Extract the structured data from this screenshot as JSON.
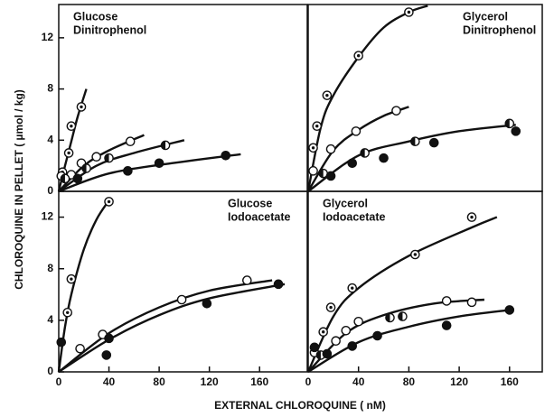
{
  "xlabel": "EXTERNAL CHLOROQUINE ( nM)",
  "ylabel": "CHLOROQUINE IN PELLET ( µmol / kg)",
  "chart_data": [
    {
      "type": "scatter",
      "title": [
        "Glucose",
        "Dinitrophenol"
      ],
      "xlim": [
        0,
        198
      ],
      "ylim": [
        0,
        14.6
      ],
      "yticks": [
        0,
        4,
        8,
        12
      ],
      "series": [
        {
          "marker": "dotted",
          "x": [
            3,
            8,
            10,
            18
          ],
          "values": [
            1.5,
            3.0,
            5.1,
            6.6
          ],
          "fit": {
            "x": [
              0,
              5,
              10,
              15,
              22
            ],
            "y": [
              0,
              2,
              3.9,
              5.8,
              8
            ]
          }
        },
        {
          "marker": "open",
          "x": [
            2,
            10,
            18,
            30,
            57
          ],
          "values": [
            1.2,
            1.3,
            2.2,
            2.7,
            3.9
          ],
          "fit": {
            "x": [
              0,
              20,
              40,
              68
            ],
            "y": [
              0,
              2.0,
              3.2,
              4.4
            ]
          }
        },
        {
          "marker": "half",
          "x": [
            5,
            22,
            40,
            85
          ],
          "values": [
            1.0,
            1.8,
            2.6,
            3.6
          ],
          "fit": {
            "x": [
              0,
              30,
              60,
              100
            ],
            "y": [
              0,
              2.0,
              3.0,
              4.0
            ]
          }
        },
        {
          "marker": "filled",
          "x": [
            15,
            55,
            80,
            133
          ],
          "values": [
            1.0,
            1.6,
            2.2,
            2.8
          ],
          "fit": {
            "x": [
              0,
              40,
              90,
              145
            ],
            "y": [
              0,
              1.4,
              2.2,
              2.9
            ]
          }
        }
      ]
    },
    {
      "type": "scatter",
      "title": [
        "Glycerol",
        "Dinitrophenol"
      ],
      "xlim": [
        0,
        186
      ],
      "ylim": [
        0,
        14.6
      ],
      "series": [
        {
          "marker": "dotted",
          "x": [
            4,
            7,
            15,
            40,
            80
          ],
          "values": [
            3.4,
            5.1,
            7.5,
            10.6,
            14
          ],
          "fit": {
            "x": [
              0,
              10,
              20,
              40,
              60,
              80,
              95
            ],
            "y": [
              0,
              5,
              7.5,
              10.5,
              12.8,
              14,
              14.5
            ]
          }
        },
        {
          "marker": "open",
          "x": [
            4,
            18,
            38,
            70
          ],
          "values": [
            1.6,
            3.3,
            4.7,
            6.3
          ],
          "fit": {
            "x": [
              0,
              20,
              40,
              60,
              80
            ],
            "y": [
              0,
              3.2,
              4.8,
              5.9,
              6.6
            ]
          }
        },
        {
          "marker": "half",
          "x": [
            12,
            45,
            85,
            160
          ],
          "values": [
            1.4,
            3.0,
            3.9,
            5.3
          ],
          "fit": {
            "x": [
              0,
              40,
              80,
              120,
              165
            ],
            "y": [
              0,
              2.8,
              3.9,
              4.7,
              5.2
            ]
          }
        },
        {
          "marker": "filled",
          "x": [
            18,
            35,
            60,
            100,
            165
          ],
          "values": [
            1.2,
            2.2,
            2.6,
            3.8,
            4.7
          ]
        }
      ]
    },
    {
      "type": "scatter",
      "title": [
        "Glucose",
        "Iodoacetate"
      ],
      "xlim": [
        0,
        198
      ],
      "ylim": [
        0,
        14
      ],
      "xticks": [
        0,
        40,
        80,
        120,
        160
      ],
      "yticks": [
        0,
        4,
        8,
        12
      ],
      "series": [
        {
          "marker": "dotted",
          "x": [
            7,
            10,
            40
          ],
          "values": [
            4.6,
            7.2,
            13.2
          ],
          "fit": {
            "x": [
              0,
              5,
              10,
              20,
              30,
              40
            ],
            "y": [
              0,
              3.5,
              6,
              9.5,
              11.8,
              13.3
            ]
          }
        },
        {
          "marker": "open",
          "x": [
            17,
            35,
            98,
            150
          ],
          "values": [
            1.8,
            2.9,
            5.6,
            7.1
          ],
          "fit": {
            "x": [
              0,
              40,
              80,
              120,
              170
            ],
            "y": [
              0,
              3.0,
              5.0,
              6.3,
              7.1
            ]
          }
        },
        {
          "marker": "filled",
          "x": [
            2,
            38,
            40,
            118,
            175
          ],
          "values": [
            2.3,
            1.3,
            2.6,
            5.3,
            6.8
          ],
          "fit": {
            "x": [
              0,
              40,
              80,
              120,
              180
            ],
            "y": [
              0,
              2.5,
              4.4,
              5.7,
              6.8
            ]
          }
        }
      ]
    },
    {
      "type": "scatter",
      "title": [
        "Glycerol",
        "Iodoacetate"
      ],
      "xlim": [
        0,
        186
      ],
      "ylim": [
        0,
        14
      ],
      "xticks": [
        0,
        40,
        80,
        120,
        160
      ],
      "series": [
        {
          "marker": "dotted",
          "x": [
            12,
            18,
            35,
            85,
            130
          ],
          "values": [
            3.1,
            5.0,
            6.5,
            9.1,
            12
          ],
          "fit": {
            "x": [
              0,
              20,
              40,
              80,
              130,
              150
            ],
            "y": [
              0,
              4.3,
              6.5,
              9.0,
              11.2,
              12.0
            ]
          }
        },
        {
          "marker": "open",
          "x": [
            5,
            22,
            30,
            40,
            110,
            130
          ],
          "values": [
            1.5,
            2.4,
            3.2,
            3.9,
            5.5,
            5.4
          ],
          "fit": {
            "x": [
              0,
              30,
              60,
              100,
              140
            ],
            "y": [
              0,
              3.0,
              4.4,
              5.3,
              5.6
            ]
          }
        },
        {
          "marker": "half",
          "x": [
            10,
            65,
            75
          ],
          "values": [
            1.3,
            4.2,
            4.3
          ]
        },
        {
          "marker": "filled",
          "x": [
            5,
            15,
            35,
            55,
            110,
            160
          ],
          "values": [
            1.9,
            1.4,
            2.0,
            2.8,
            3.6,
            4.8
          ],
          "fit": {
            "x": [
              0,
              40,
              80,
              120,
              160
            ],
            "y": [
              0,
              2.3,
              3.5,
              4.3,
              4.8
            ]
          }
        }
      ]
    }
  ]
}
